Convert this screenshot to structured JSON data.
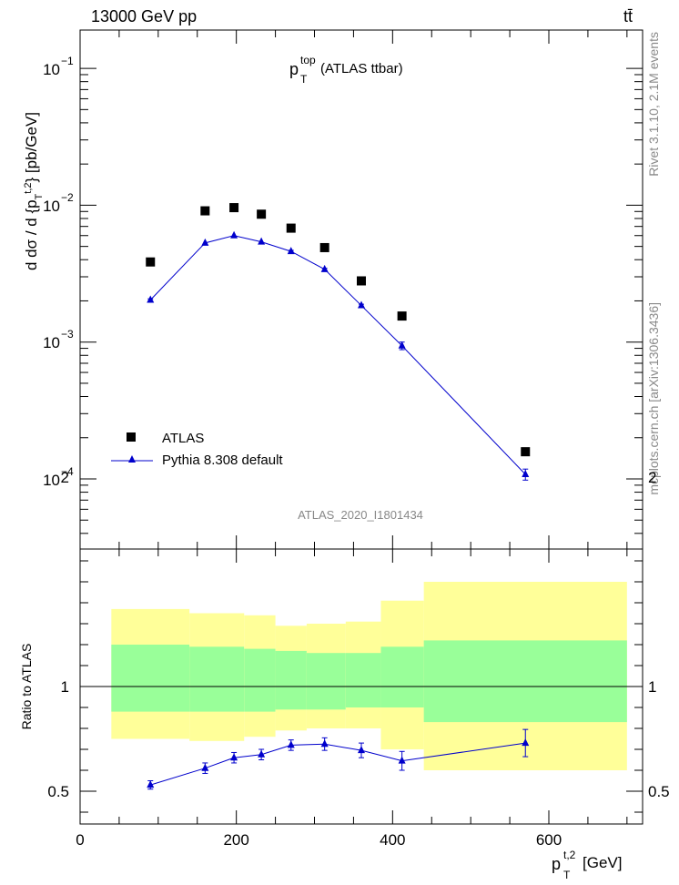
{
  "header": {
    "energy_label": "13000 GeV pp",
    "process_label": "tt̄"
  },
  "side_labels": {
    "rivet": "Rivet 3.1.10,  2.1M events",
    "mcplots": "mcplots.cern.ch [arXiv:1306.3436]"
  },
  "main_panel": {
    "title_main": "p",
    "title_sup": "top",
    "title_sub": "T",
    "title_rest": " (ATLAS ttbar)",
    "analysis_id": "ATLAS_2020_I1801434",
    "ylabel": "d dσ / d {p_T^t,2} [pb/GeV]"
  },
  "ratio_panel": {
    "ylabel": "Ratio to ATLAS"
  },
  "xaxis": {
    "label_main": "p",
    "label_sup": "t,2",
    "label_sub": "T",
    "label_unit": " [GeV]"
  },
  "legend": [
    {
      "name": "ATLAS",
      "marker": "square",
      "color": "#000000"
    },
    {
      "name": "Pythia 8.308 default",
      "marker": "triangle",
      "color": "#0000cc"
    }
  ],
  "chart_data": [
    {
      "type": "scatter",
      "panel": "main",
      "yscale": "log",
      "xlim": [
        0,
        720
      ],
      "ylim": [
        2.9e-05,
        0.2
      ],
      "y_ticks": [
        "10^-4",
        "10^-3",
        "10^-2",
        "10^-1"
      ],
      "series": [
        {
          "name": "ATLAS",
          "color": "#000000",
          "marker": "square",
          "x": [
            90,
            160,
            197,
            232,
            270,
            313,
            360,
            412,
            570
          ],
          "y": [
            0.00385,
            0.0091,
            0.0096,
            0.0086,
            0.0068,
            0.0049,
            0.0028,
            0.00155,
            0.000158
          ]
        },
        {
          "name": "Pythia 8.308 default",
          "color": "#0000cc",
          "marker": "triangle",
          "x": [
            90,
            160,
            197,
            232,
            270,
            313,
            360,
            412,
            570
          ],
          "y": [
            0.00203,
            0.0053,
            0.006,
            0.0054,
            0.0046,
            0.0034,
            0.00185,
            0.00094,
            0.000108
          ],
          "yerr": [
            4e-05,
            8e-05,
            9e-05,
            8e-05,
            8e-05,
            6e-05,
            4e-05,
            6e-05,
            1e-05
          ]
        }
      ]
    },
    {
      "type": "line",
      "panel": "ratio",
      "xlim": [
        0,
        720
      ],
      "ylim": [
        0.34,
        2.35
      ],
      "x_ticks": [
        0,
        200,
        400,
        600
      ],
      "y_ticks": [
        0.5,
        1,
        2
      ],
      "bands": {
        "edges": [
          40,
          140,
          210,
          250,
          290,
          340,
          385,
          440,
          700
        ],
        "green_low": [
          0.88,
          0.88,
          0.88,
          0.89,
          0.89,
          0.9,
          0.9,
          0.83
        ],
        "green_high": [
          1.2,
          1.19,
          1.18,
          1.17,
          1.16,
          1.16,
          1.19,
          1.22
        ],
        "yellow_low": [
          0.75,
          0.74,
          0.76,
          0.79,
          0.8,
          0.8,
          0.7,
          0.6
        ],
        "yellow_high": [
          1.37,
          1.35,
          1.34,
          1.29,
          1.3,
          1.31,
          1.41,
          1.5
        ]
      },
      "series": [
        {
          "name": "Pythia 8.308 default",
          "color": "#0000cc",
          "x": [
            90,
            160,
            197,
            232,
            270,
            313,
            360,
            412,
            570
          ],
          "y": [
            0.53,
            0.61,
            0.66,
            0.675,
            0.72,
            0.725,
            0.695,
            0.645,
            0.73
          ],
          "yerr": [
            0.02,
            0.025,
            0.025,
            0.025,
            0.025,
            0.03,
            0.035,
            0.045,
            0.065
          ]
        }
      ],
      "reference_line": 1
    }
  ]
}
